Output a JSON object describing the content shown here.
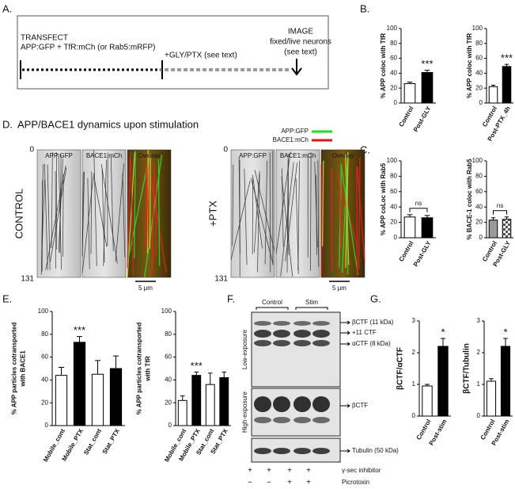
{
  "panel_a": {
    "label": "A.",
    "transfect": "TRANSFECT",
    "constructs": "APP:GFP + TfR:mCh (or Rab5:mRFP)",
    "stimulus": "+GLY/PTX (see text)",
    "image": [
      "IMAGE",
      "fixed/live neurons",
      "(see text)"
    ]
  },
  "panel_labels": {
    "b": "B.",
    "c": "C.",
    "e": "E.",
    "g": "G."
  },
  "panel_d": {
    "label": "D.",
    "title": "APP/BACE1 dynamics upon stimulation",
    "legend": [
      {
        "name": "APP:GFP",
        "color": "#22dd22"
      },
      {
        "name": "BACE1:mCh",
        "color": "#ee1111"
      }
    ],
    "groups": [
      {
        "condition": "CONTROL",
        "channels": [
          "APP:GFP",
          "BACE1:mCh",
          "Overlay"
        ],
        "time_start": "0",
        "time_end": "131",
        "scale": "5 μm"
      },
      {
        "condition": "+PTX",
        "channels": [
          "APP:GFP",
          "BACE1:mCh",
          "Overlay"
        ],
        "time_start": "0",
        "time_end": "131",
        "scale": "5 μm"
      }
    ]
  },
  "panel_f": {
    "label": "F.",
    "groups": [
      "Control",
      "Stim"
    ],
    "exposures": [
      "Low-exposure",
      "High-exposure"
    ],
    "bands": [
      "βCTF (11 kDa)",
      "+11 CTF",
      "αCTF (8 kDa)",
      "βCTF",
      "Tubulin (50 kDa)"
    ],
    "treatments": [
      {
        "name": "γ-sec inhibitor",
        "lanes": [
          "+",
          "+",
          "+",
          "+"
        ]
      },
      {
        "name": "Picrotoxin",
        "lanes": [
          "−",
          "−",
          "+",
          "+"
        ]
      }
    ]
  },
  "chart_data": [
    {
      "type": "bar",
      "ylabel": [
        "% APP coloc with TfR"
      ],
      "categories": [
        "Control",
        "Post-GLY"
      ],
      "values": [
        26,
        41
      ],
      "errors": [
        2,
        3
      ],
      "colors": [
        "#ffffff",
        "#000000"
      ],
      "checkered": [
        false,
        false
      ],
      "ylim": [
        0,
        100
      ],
      "yticks": [
        0,
        20,
        40,
        60,
        80,
        100
      ],
      "annotation": {
        "text": "***",
        "over": "Post-GLY"
      }
    },
    {
      "type": "bar",
      "ylabel": [
        "% APP coloc with TfR"
      ],
      "categories": [
        "Control",
        "Post-PTX_4h"
      ],
      "values": [
        22,
        49
      ],
      "errors": [
        2,
        3
      ],
      "colors": [
        "#ffffff",
        "#000000"
      ],
      "checkered": [
        false,
        false
      ],
      "ylim": [
        0,
        100
      ],
      "yticks": [
        0,
        20,
        40,
        60,
        80,
        100
      ],
      "annotation": {
        "text": "***",
        "over": "Post-PTX_4h"
      }
    },
    {
      "type": "bar",
      "ylabel": [
        "% APP coLoc with Rab5"
      ],
      "categories": [
        "Control",
        "Post-GLY"
      ],
      "values": [
        27,
        26
      ],
      "errors": [
        3,
        3
      ],
      "colors": [
        "#ffffff",
        "#000000"
      ],
      "checkered": [
        false,
        false
      ],
      "ylim": [
        0,
        100
      ],
      "yticks": [
        0,
        20,
        40,
        60,
        80,
        100
      ],
      "annotation": {
        "text": "ns",
        "over": "bracket"
      }
    },
    {
      "type": "bar",
      "ylabel": [
        "% BACE-1 coloc with Rab5"
      ],
      "categories": [
        "Control",
        "Post-GLY"
      ],
      "values": [
        23,
        24
      ],
      "errors": [
        3,
        3
      ],
      "colors": [
        "#999999",
        "#999999"
      ],
      "checkered": [
        false,
        true
      ],
      "ylim": [
        0,
        100
      ],
      "yticks": [
        0,
        20,
        40,
        60,
        80,
        100
      ],
      "annotation": {
        "text": "ns",
        "over": "bracket"
      }
    },
    {
      "type": "bar",
      "ylabel": [
        "% APP particles cotransported",
        "with BACE1"
      ],
      "categories": [
        "Mobile_cont",
        "Mobile_PTX",
        "Stat_cont",
        "Stat_PTX"
      ],
      "values": [
        44,
        73,
        45,
        50
      ],
      "errors": [
        7,
        5,
        12,
        11
      ],
      "colors": [
        "#ffffff",
        "#000000",
        "#ffffff",
        "#000000"
      ],
      "checkered": [
        false,
        false,
        false,
        false
      ],
      "ylim": [
        0,
        100
      ],
      "yticks": [
        0,
        20,
        40,
        60,
        80,
        100
      ],
      "annotation": {
        "text": "***",
        "over": "Mobile_PTX"
      }
    },
    {
      "type": "bar",
      "ylabel": [
        "% APP particles cotransported",
        "with TfR"
      ],
      "categories": [
        "Mobile_cont",
        "Mobile_PTX",
        "Stat_cont",
        "Stat_PTX"
      ],
      "values": [
        22,
        44,
        36,
        42
      ],
      "errors": [
        4,
        3,
        10,
        5
      ],
      "colors": [
        "#ffffff",
        "#000000",
        "#ffffff",
        "#000000"
      ],
      "checkered": [
        false,
        false,
        false,
        false
      ],
      "ylim": [
        0,
        100
      ],
      "yticks": [
        0,
        20,
        40,
        60,
        80,
        100
      ],
      "annotation": {
        "text": "***",
        "over": "Mobile_PTX"
      }
    },
    {
      "type": "bar",
      "ylabel": [
        "βCTF/αCTF"
      ],
      "categories": [
        "Control",
        "Post-stim"
      ],
      "values": [
        0.95,
        2.2
      ],
      "errors": [
        0.05,
        0.25
      ],
      "colors": [
        "#ffffff",
        "#000000"
      ],
      "checkered": [
        false,
        false
      ],
      "ylim": [
        0,
        3
      ],
      "yticks": [
        0,
        1,
        2,
        3
      ],
      "annotation": {
        "text": "*",
        "over": "Post-stim"
      }
    },
    {
      "type": "bar",
      "ylabel": [
        "βCTF/Tubulin"
      ],
      "categories": [
        "Control",
        "Post-stim"
      ],
      "values": [
        1.1,
        2.2
      ],
      "errors": [
        0.08,
        0.25
      ],
      "colors": [
        "#ffffff",
        "#000000"
      ],
      "checkered": [
        false,
        false
      ],
      "ylim": [
        0,
        3
      ],
      "yticks": [
        0,
        1,
        2,
        3
      ],
      "annotation": {
        "text": "*",
        "over": "Post-stim"
      }
    }
  ]
}
